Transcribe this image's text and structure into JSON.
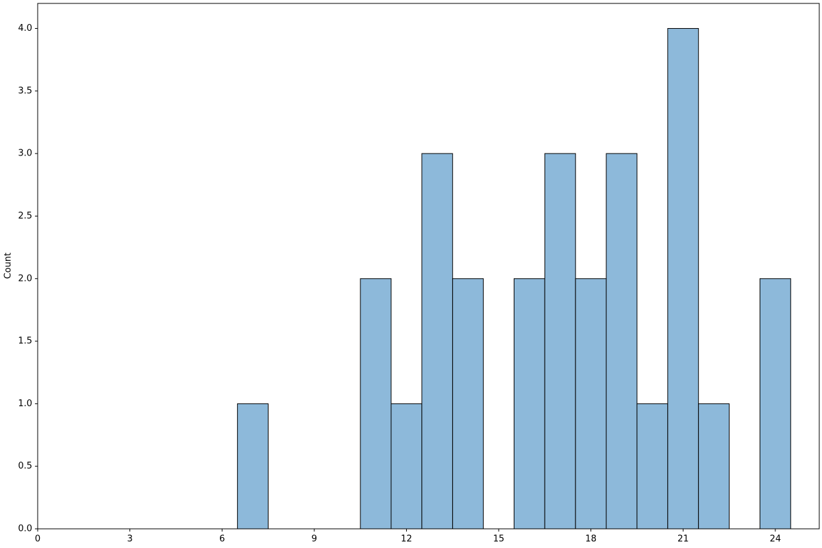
{
  "chart_data": {
    "type": "histogram",
    "ylabel": "Count",
    "bins": [
      6.5,
      7.5,
      8.5,
      9.5,
      10.5,
      11.5,
      12.5,
      13.5,
      14.5,
      15.5,
      16.5,
      17.5,
      18.5,
      19.5,
      20.5,
      21.5,
      22.5,
      23.5,
      24.5
    ],
    "values": [
      1,
      0,
      0,
      0,
      2,
      1,
      3,
      2,
      0,
      2,
      3,
      2,
      3,
      1,
      4,
      1,
      0,
      2
    ],
    "color": "#8db9da",
    "edgecolor": "#000000",
    "xlim": [
      0,
      25.43
    ],
    "ylim": [
      0,
      4.2
    ],
    "xticks": [
      0,
      3,
      6,
      9,
      12,
      15,
      18,
      21,
      24
    ],
    "yticks": [
      {
        "value": 0,
        "label": "0.0"
      },
      {
        "value": 0.5,
        "label": "0.5"
      },
      {
        "value": 1,
        "label": "1.0"
      },
      {
        "value": 1.5,
        "label": "1.5"
      },
      {
        "value": 2,
        "label": "2.0"
      },
      {
        "value": 2.5,
        "label": "2.5"
      },
      {
        "value": 3,
        "label": "3.0"
      },
      {
        "value": 3.5,
        "label": "3.5"
      },
      {
        "value": 4,
        "label": "4.0"
      }
    ]
  }
}
